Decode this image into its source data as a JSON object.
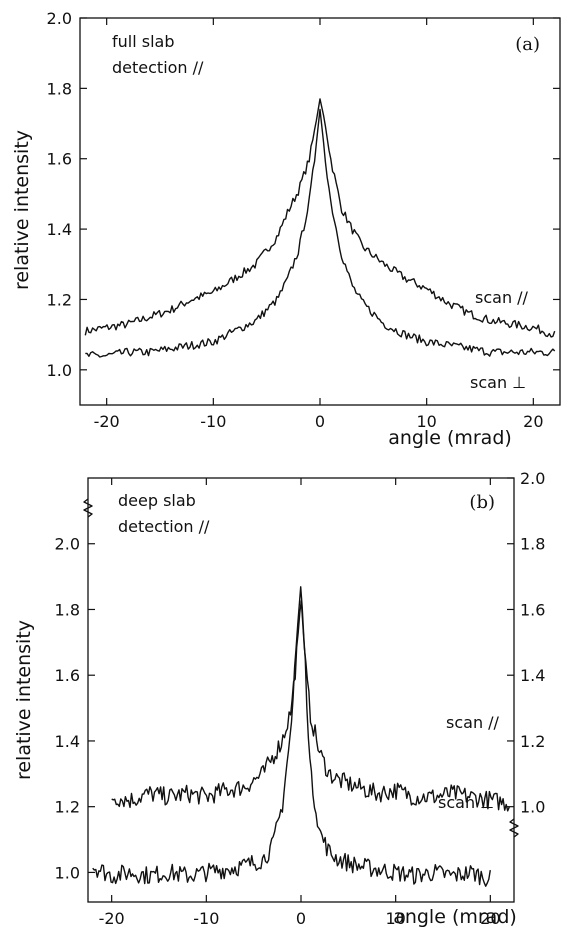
{
  "chart_data": [
    {
      "type": "line",
      "panel_label": "(a)",
      "annotation": [
        "full slab",
        "detection //"
      ],
      "xlabel": "angle (mrad)",
      "ylabel": "relative intensity",
      "xlim": [
        -22.5,
        22.5
      ],
      "ylim": [
        0.9,
        2.0
      ],
      "x_ticks": [
        "-20",
        "-10",
        "0",
        "10",
        "20"
      ],
      "y_ticks": [
        "1.0",
        "1.2",
        "1.4",
        "1.6",
        "1.8",
        "2.0"
      ],
      "series": [
        {
          "name": "scan //",
          "x": [
            -22,
            -20,
            -18,
            -16,
            -14,
            -12,
            -10,
            -8,
            -6,
            -4,
            -3,
            -2,
            -1,
            -0.5,
            0,
            0.5,
            1,
            2,
            3,
            4,
            6,
            8,
            10,
            12,
            14,
            16,
            18,
            20,
            22
          ],
          "y": [
            1.11,
            1.12,
            1.13,
            1.15,
            1.17,
            1.2,
            1.22,
            1.26,
            1.3,
            1.38,
            1.45,
            1.51,
            1.6,
            1.68,
            1.77,
            1.7,
            1.6,
            1.46,
            1.4,
            1.35,
            1.3,
            1.26,
            1.23,
            1.19,
            1.16,
            1.14,
            1.13,
            1.12,
            1.1
          ]
        },
        {
          "name": "scan ⊥",
          "x": [
            -22,
            -20,
            -18,
            -16,
            -14,
            -12,
            -10,
            -8,
            -6,
            -4,
            -3,
            -2,
            -1,
            -0.5,
            0,
            0.5,
            1,
            2,
            3,
            4,
            6,
            8,
            10,
            12,
            14,
            16,
            18,
            20,
            22
          ],
          "y": [
            1.04,
            1.04,
            1.05,
            1.05,
            1.06,
            1.07,
            1.08,
            1.11,
            1.14,
            1.2,
            1.26,
            1.34,
            1.48,
            1.6,
            1.74,
            1.6,
            1.48,
            1.33,
            1.24,
            1.19,
            1.13,
            1.1,
            1.08,
            1.07,
            1.06,
            1.05,
            1.05,
            1.05,
            1.05
          ]
        }
      ]
    },
    {
      "type": "line",
      "panel_label": "(b)",
      "annotation": [
        "deep slab",
        "detection //"
      ],
      "xlabel": "angle (mrad)",
      "ylabel": "relative intensity",
      "xlim": [
        -22.5,
        22.5
      ],
      "ylim": [
        0.91,
        2.2
      ],
      "ylim_right": [
        0.71,
        2.0
      ],
      "x_ticks": [
        "-20",
        "-10",
        "0",
        "10",
        "20"
      ],
      "y_ticks": [
        "1.0",
        "1.2",
        "1.4",
        "1.6",
        "1.8",
        "2.0"
      ],
      "y_ticks_right": [
        "1.0",
        "1.2",
        "1.4",
        "1.6",
        "1.8",
        "2.0"
      ],
      "series": [
        {
          "name": "scan //",
          "axis": "right",
          "x": [
            -20,
            -18,
            -16,
            -14,
            -12,
            -10,
            -8,
            -6,
            -4,
            -3,
            -2,
            -1,
            -0.5,
            0,
            0.5,
            1,
            2,
            3,
            4,
            6,
            8,
            10,
            12,
            14,
            16,
            18,
            20,
            22
          ],
          "y": [
            1.03,
            1.02,
            1.04,
            1.03,
            1.04,
            1.03,
            1.05,
            1.06,
            1.1,
            1.15,
            1.2,
            1.3,
            1.45,
            1.64,
            1.42,
            1.28,
            1.16,
            1.1,
            1.08,
            1.06,
            1.04,
            1.05,
            1.03,
            1.03,
            1.04,
            1.03,
            1.02,
            1.01
          ]
        },
        {
          "name": "scan ⊥",
          "axis": "left",
          "x": [
            -22,
            -20,
            -18,
            -16,
            -14,
            -12,
            -10,
            -8,
            -6,
            -4,
            -3,
            -2,
            -1,
            -0.5,
            0,
            0.5,
            1,
            2,
            3,
            4,
            6,
            8,
            10,
            12,
            14,
            16,
            18,
            20
          ],
          "y": [
            1.02,
            0.99,
            1.0,
            0.99,
            1.0,
            0.99,
            1.0,
            1.01,
            1.02,
            1.04,
            1.08,
            1.2,
            1.45,
            1.7,
            1.88,
            1.6,
            1.3,
            1.12,
            1.06,
            1.04,
            1.02,
            1.01,
            1.0,
            0.99,
            1.0,
            0.99,
            1.0,
            0.98
          ]
        }
      ]
    }
  ]
}
